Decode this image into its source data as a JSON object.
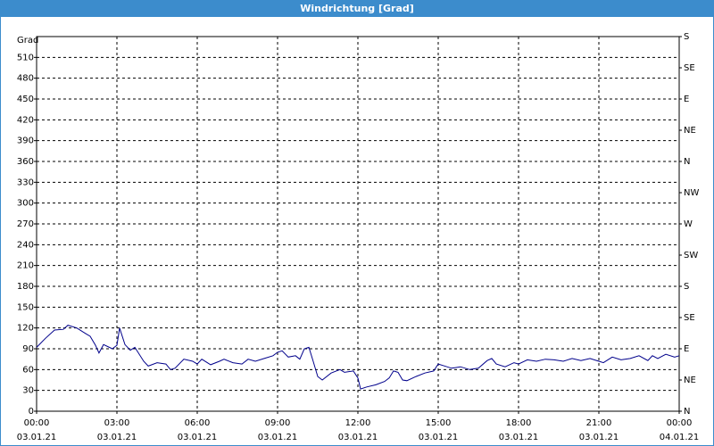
{
  "chart_data": {
    "type": "line",
    "title": "Windrichtung [Grad]",
    "y_label": "Grad",
    "xlim": [
      0,
      24
    ],
    "ylim": [
      0,
      540
    ],
    "y2lim": [
      0,
      540
    ],
    "grid": true,
    "xticks": [
      {
        "value": 0,
        "label": "00:00",
        "date_label": "03.01.21"
      },
      {
        "value": 3,
        "label": "03:00",
        "date_label": "03.01.21"
      },
      {
        "value": 6,
        "label": "06:00",
        "date_label": "03.01.21"
      },
      {
        "value": 9,
        "label": "09:00",
        "date_label": "03.01.21"
      },
      {
        "value": 12,
        "label": "12:00",
        "date_label": "03.01.21"
      },
      {
        "value": 15,
        "label": "15:00",
        "date_label": "03.01.21"
      },
      {
        "value": 18,
        "label": "18:00",
        "date_label": "03.01.21"
      },
      {
        "value": 21,
        "label": "21:00",
        "date_label": "03.01.21"
      },
      {
        "value": 24,
        "label": "00:00",
        "date_label": "04.01.21"
      }
    ],
    "yticks": [
      0,
      30,
      60,
      90,
      120,
      150,
      180,
      210,
      240,
      270,
      300,
      330,
      360,
      390,
      420,
      450,
      480,
      510
    ],
    "y2ticks": [
      {
        "value": 0,
        "label": "N"
      },
      {
        "value": 45,
        "label": "NE"
      },
      {
        "value": 90,
        "label": "E"
      },
      {
        "value": 135,
        "label": "SE"
      },
      {
        "value": 180,
        "label": "S"
      },
      {
        "value": 225,
        "label": "SW"
      },
      {
        "value": 270,
        "label": "W"
      },
      {
        "value": 315,
        "label": "NW"
      },
      {
        "value": 360,
        "label": "N"
      },
      {
        "value": 405,
        "label": "NE"
      },
      {
        "value": 450,
        "label": "E"
      },
      {
        "value": 495,
        "label": "SE"
      },
      {
        "value": 540,
        "label": "S"
      }
    ],
    "series": [
      {
        "color": "#00008b",
        "x": [
          0,
          0.33,
          0.67,
          1.0,
          1.17,
          1.5,
          1.83,
          2.0,
          2.2,
          2.33,
          2.5,
          2.83,
          3.0,
          3.1,
          3.3,
          3.5,
          3.67,
          4.0,
          4.17,
          4.5,
          4.83,
          5.0,
          5.17,
          5.5,
          5.83,
          6.0,
          6.17,
          6.5,
          6.83,
          7.0,
          7.33,
          7.67,
          7.9,
          8.17,
          8.5,
          8.83,
          9.0,
          9.17,
          9.4,
          9.67,
          9.83,
          10.0,
          10.17,
          10.33,
          10.5,
          10.67,
          11.0,
          11.33,
          11.5,
          11.83,
          12.0,
          12.1,
          12.33,
          12.67,
          13.0,
          13.17,
          13.33,
          13.5,
          13.67,
          13.83,
          14.17,
          14.5,
          14.83,
          15.0,
          15.17,
          15.5,
          15.83,
          16.17,
          16.5,
          16.83,
          17.0,
          17.17,
          17.5,
          17.83,
          18.0,
          18.33,
          18.67,
          19.0,
          19.33,
          19.67,
          20.0,
          20.33,
          20.67,
          21.0,
          21.17,
          21.5,
          21.83,
          22.17,
          22.5,
          22.83,
          23.0,
          23.2,
          23.5,
          23.83,
          24.0
        ],
        "values": [
          92,
          105,
          117,
          118,
          124,
          120,
          112,
          108,
          95,
          84,
          96,
          90,
          95,
          120,
          96,
          88,
          92,
          72,
          65,
          70,
          68,
          60,
          62,
          75,
          72,
          68,
          75,
          67,
          72,
          75,
          70,
          68,
          75,
          72,
          76,
          80,
          85,
          87,
          78,
          80,
          75,
          90,
          92,
          72,
          50,
          45,
          55,
          60,
          56,
          58,
          48,
          32,
          35,
          38,
          43,
          48,
          58,
          56,
          45,
          44,
          50,
          55,
          58,
          68,
          66,
          62,
          64,
          60,
          62,
          73,
          76,
          68,
          64,
          70,
          68,
          74,
          72,
          75,
          74,
          72,
          76,
          73,
          76,
          72,
          70,
          78,
          74,
          76,
          80,
          73,
          80,
          76,
          82,
          78,
          80
        ]
      }
    ]
  }
}
